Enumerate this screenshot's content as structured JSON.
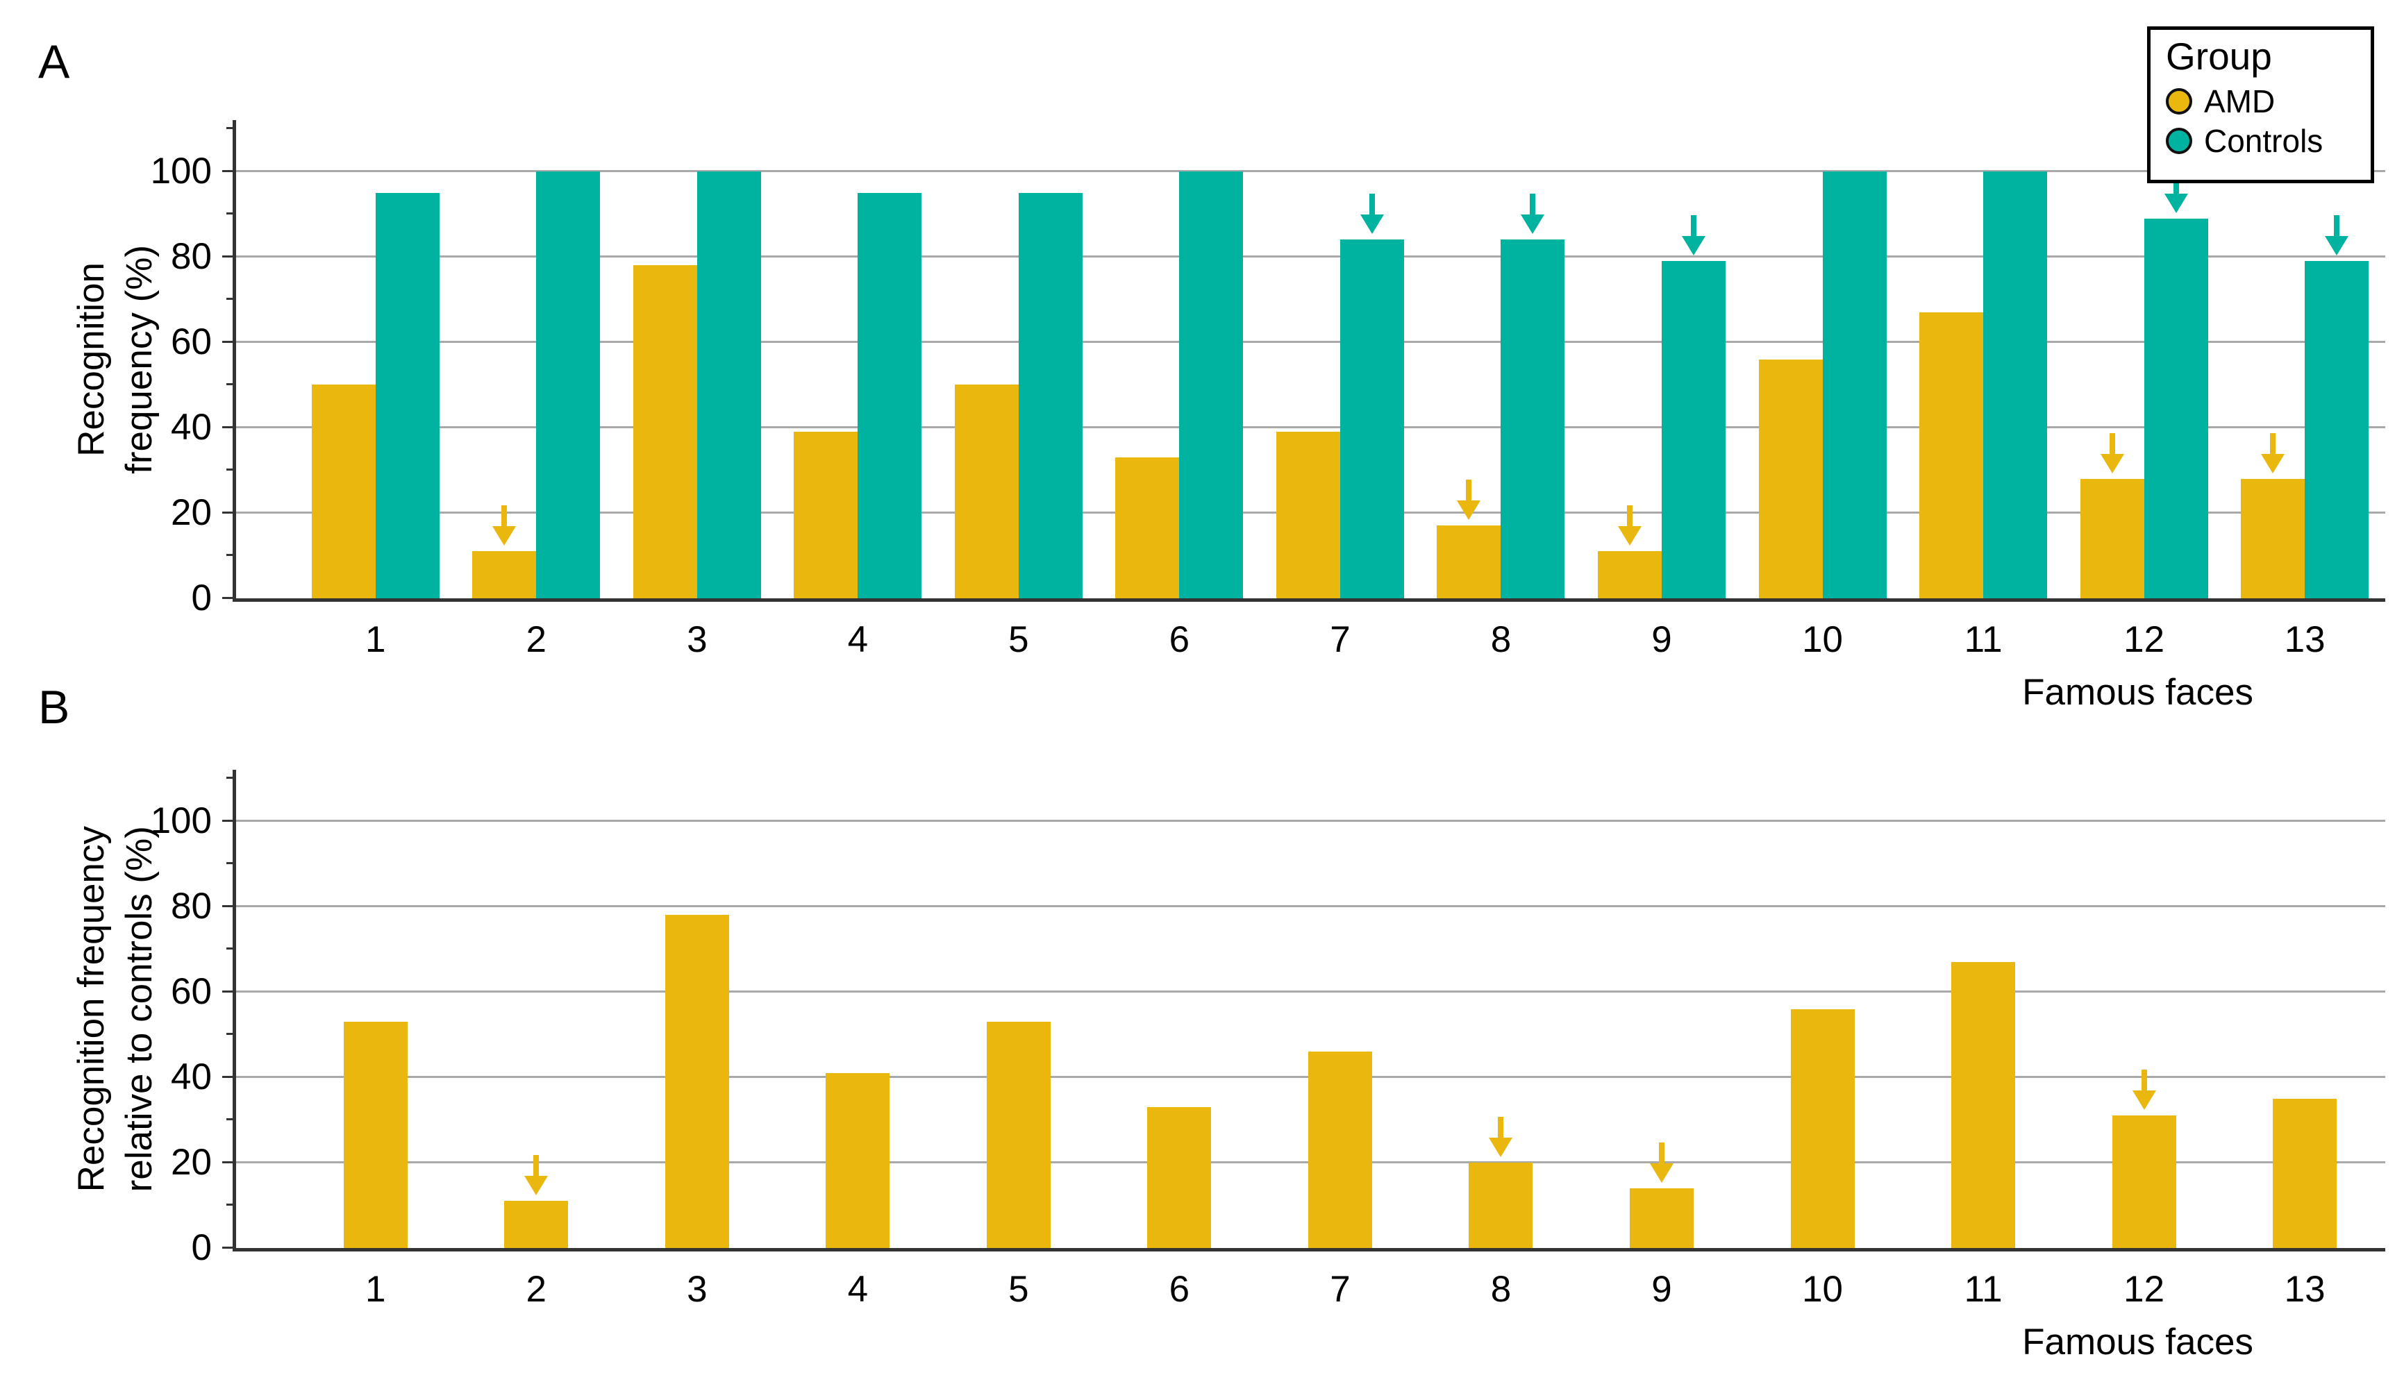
{
  "panels": {
    "a_letter": "A",
    "b_letter": "B"
  },
  "legend": {
    "title": "Group",
    "items": [
      {
        "label": "AMD",
        "color": "#EAB70E"
      },
      {
        "label": "Controls",
        "color": "#00B3A0"
      }
    ]
  },
  "colors": {
    "amd": "#EAB70E",
    "controls": "#00B3A0",
    "gridline": "#A9A9A9",
    "axis": "#333333"
  },
  "chart_data": [
    {
      "type": "bar",
      "panel": "A",
      "categories": [
        "1",
        "2",
        "3",
        "4",
        "5",
        "6",
        "7",
        "8",
        "9",
        "10",
        "11",
        "12",
        "13"
      ],
      "series": [
        {
          "name": "AMD",
          "color": "#EAB70E",
          "values": [
            50,
            11,
            78,
            39,
            50,
            33,
            39,
            17,
            11,
            56,
            67,
            28,
            28
          ],
          "significance_arrows": [
            2,
            8,
            9,
            12,
            13
          ]
        },
        {
          "name": "Controls",
          "color": "#00B3A0",
          "values": [
            95,
            100,
            100,
            95,
            95,
            100,
            84,
            84,
            79,
            100,
            100,
            89,
            79
          ],
          "significance_arrows": [
            7,
            8,
            9,
            12,
            13
          ]
        }
      ],
      "xlabel": "Famous faces",
      "ylabel": "Recognition\nfrequency (%)",
      "ylim": [
        0,
        112
      ],
      "yticks": [
        0,
        20,
        40,
        60,
        80,
        100
      ],
      "minor_ticks": [
        10,
        30,
        50,
        70,
        90,
        110
      ],
      "grid": true,
      "legend_position": "top-right"
    },
    {
      "type": "bar",
      "panel": "B",
      "categories": [
        "1",
        "2",
        "3",
        "4",
        "5",
        "6",
        "7",
        "8",
        "9",
        "10",
        "11",
        "12",
        "13"
      ],
      "series": [
        {
          "name": "AMD",
          "color": "#EAB70E",
          "values": [
            53,
            11,
            78,
            41,
            53,
            33,
            46,
            20,
            14,
            56,
            67,
            31,
            35
          ],
          "significance_arrows": [
            2,
            8,
            9,
            12
          ]
        }
      ],
      "xlabel": "Famous faces",
      "ylabel": "Recognition frequency\nrelative to controls (%)",
      "ylim": [
        0,
        112
      ],
      "yticks": [
        0,
        20,
        40,
        60,
        80,
        100
      ],
      "minor_ticks": [
        10,
        30,
        50,
        70,
        90,
        110
      ],
      "grid": true,
      "legend_position": "none"
    }
  ]
}
